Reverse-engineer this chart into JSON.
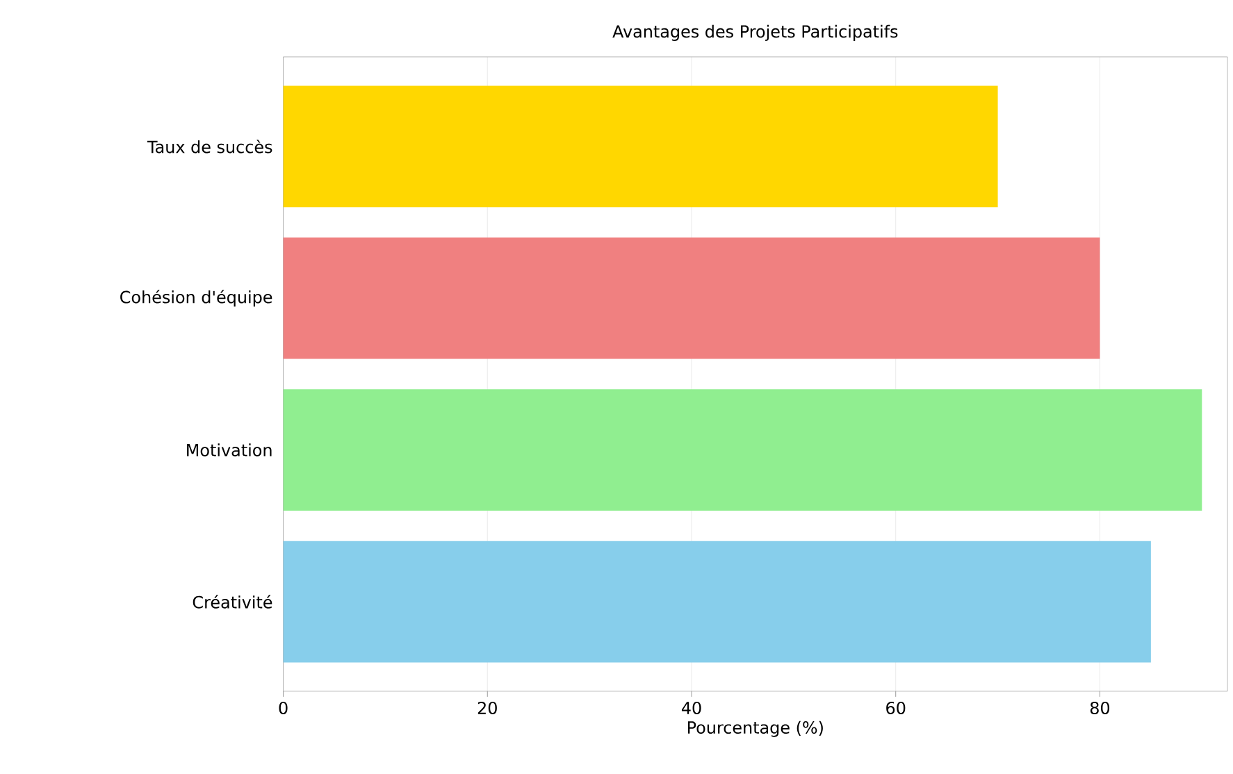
{
  "chart_data": {
    "type": "bar",
    "orientation": "horizontal",
    "title": "Avantages des Projets Participatifs",
    "xlabel": "Pourcentage (%)",
    "categories": [
      "Taux de succès",
      "Cohésion d'équipe",
      "Motivation",
      "Créativité"
    ],
    "values": [
      70,
      80,
      90,
      85
    ],
    "colors": [
      "#ffd700",
      "#f08080",
      "#90ee90",
      "#87ceeb"
    ],
    "xlim": [
      0,
      92.5
    ],
    "xticks": [
      0,
      20,
      40,
      60,
      80
    ],
    "grid": "x"
  }
}
